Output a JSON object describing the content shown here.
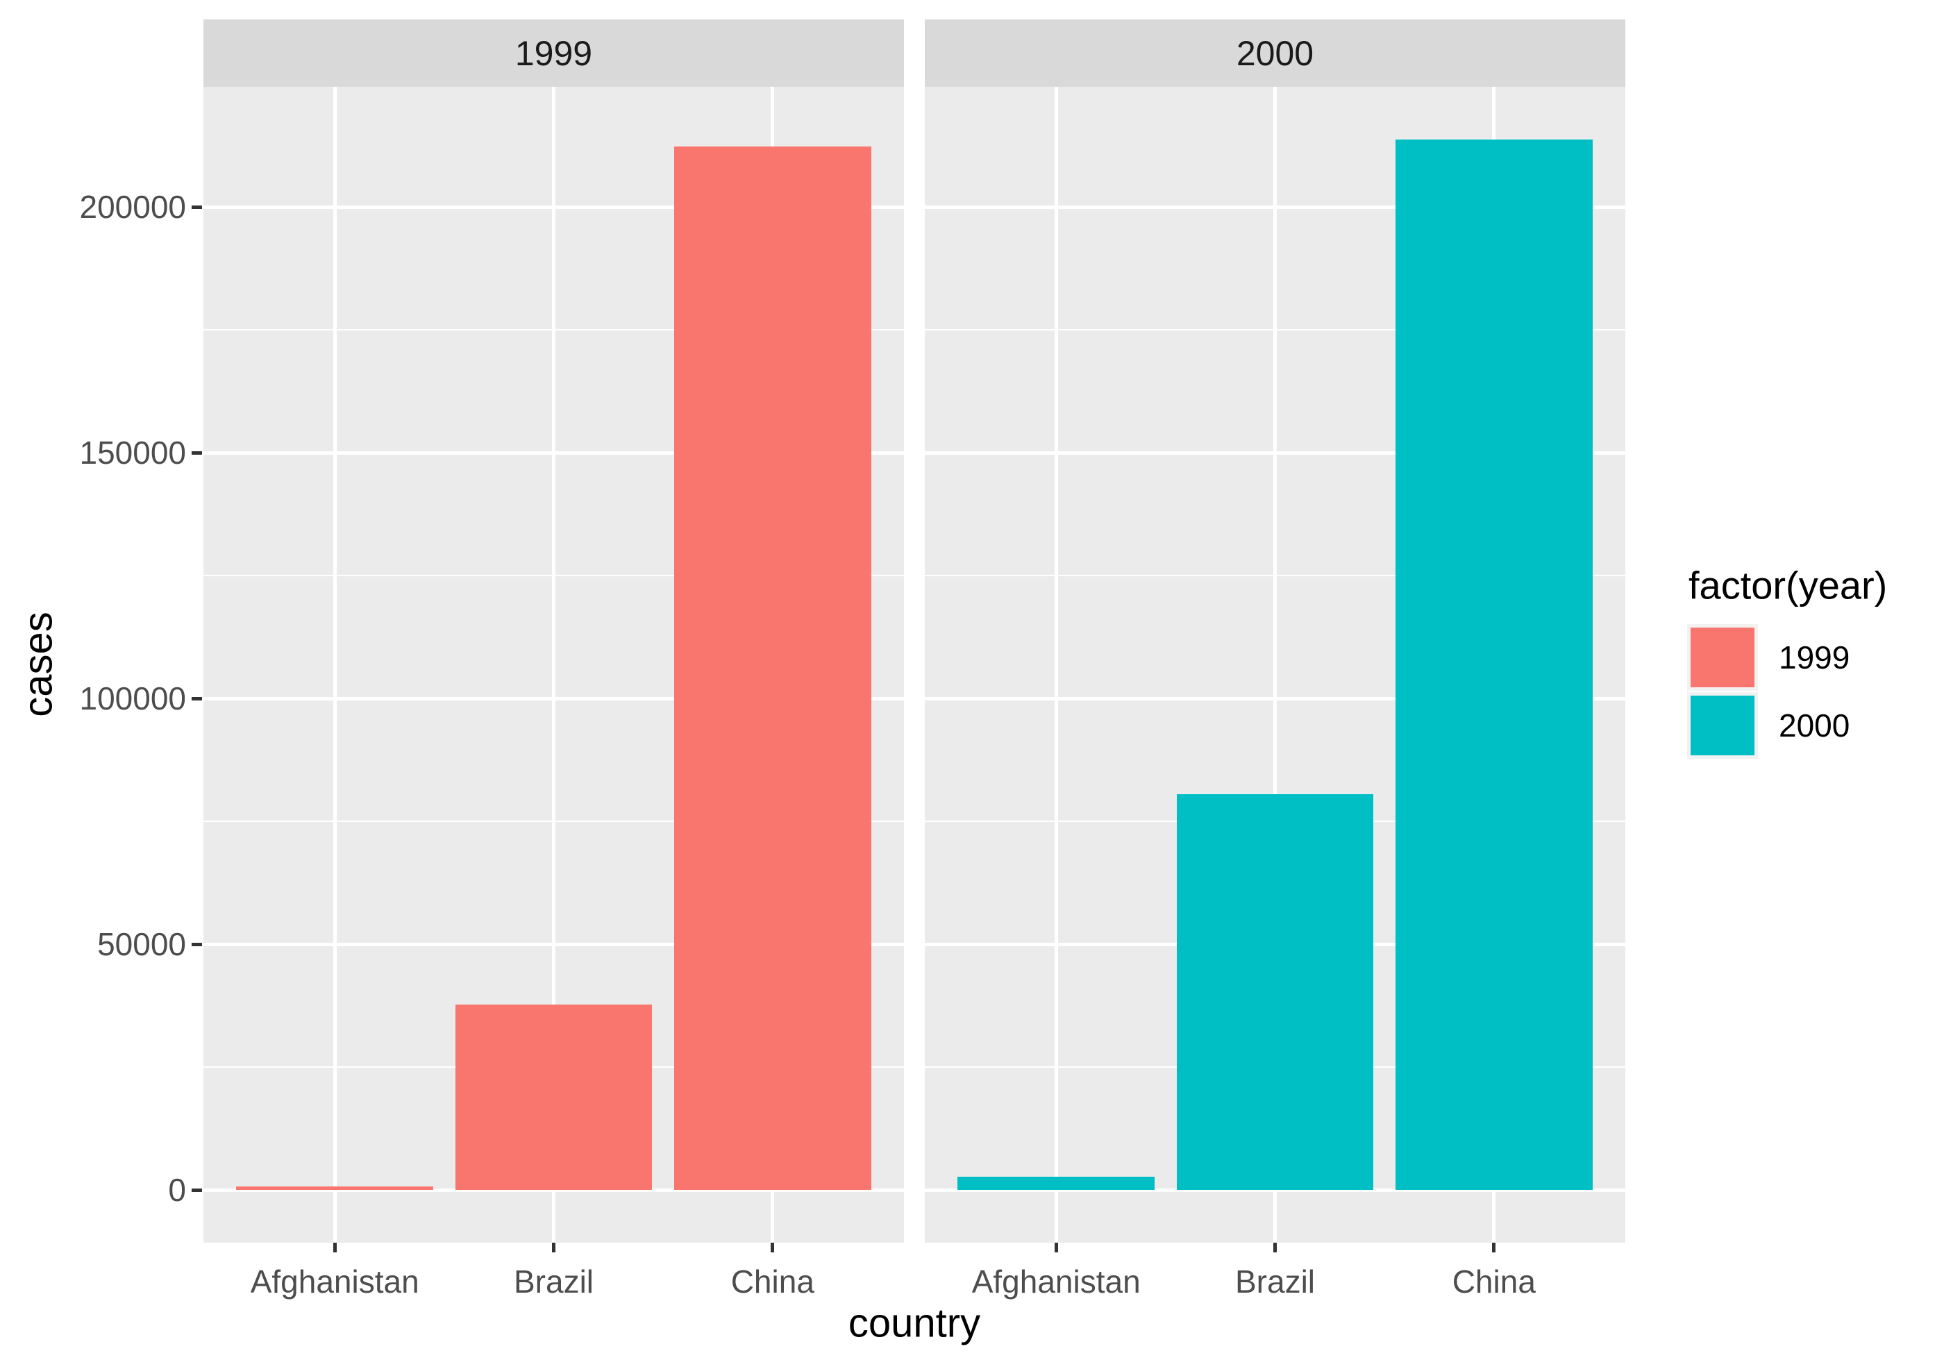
{
  "chart_data": {
    "type": "bar",
    "title": "",
    "xlabel": "country",
    "ylabel": "cases",
    "facet_variable": "year",
    "categories": [
      "Afghanistan",
      "Brazil",
      "China"
    ],
    "facets": [
      {
        "label": "1999",
        "color": "#F8766D",
        "values": [
          745,
          37737,
          212258
        ]
      },
      {
        "label": "2000",
        "color": "#00BFC4",
        "values": [
          2666,
          80488,
          213766
        ]
      }
    ],
    "y_ticks": [
      {
        "value": 0,
        "label": "0"
      },
      {
        "value": 50000,
        "label": "50000"
      },
      {
        "value": 100000,
        "label": "100000"
      },
      {
        "value": 150000,
        "label": "150000"
      },
      {
        "value": 200000,
        "label": "200000"
      }
    ],
    "y_minor_ticks": [
      25000,
      75000,
      125000,
      175000
    ],
    "ylim": [
      0,
      213766
    ],
    "y_expand_fraction": 0.05,
    "grid": true,
    "legend": {
      "title": "factor(year)",
      "position": "right",
      "entries": [
        {
          "label": "1999",
          "color": "#F8766D"
        },
        {
          "label": "2000",
          "color": "#00BFC4"
        }
      ]
    },
    "colors": {
      "bar_1999": "#F8766D",
      "bar_2000": "#00BFC4",
      "panel_background": "#EBEBEB",
      "strip_background": "#D9D9D9",
      "gridline": "#FFFFFF",
      "tick_mark": "#333333",
      "axis_text": "#4D4D4D",
      "axis_title": "#000000",
      "legend_key_background": "#F2F2F2"
    }
  }
}
